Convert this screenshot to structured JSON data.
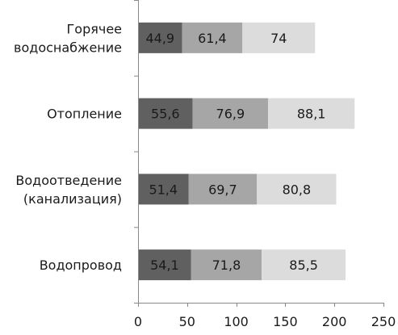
{
  "chart_data": {
    "type": "bar",
    "orientation": "horizontal",
    "stacked": true,
    "categories": [
      "Горячее водоснабжение",
      "Отопление",
      "Водоотведение (канализация)",
      "Водопровод"
    ],
    "category_label_lines": [
      [
        "Горячее",
        "водоснабжение"
      ],
      [
        "Отопление"
      ],
      [
        "Водоотведение",
        "(канализация)"
      ],
      [
        "Водопровод"
      ]
    ],
    "series": [
      {
        "values": [
          44.9,
          55.6,
          51.4,
          54.1
        ],
        "labels": [
          "44,9",
          "55,6",
          "51,4",
          "54,1"
        ],
        "color": "#606060"
      },
      {
        "values": [
          61.4,
          76.9,
          69.7,
          71.8
        ],
        "labels": [
          "61,4",
          "76,9",
          "69,7",
          "71,8"
        ],
        "color": "#a6a6a6"
      },
      {
        "values": [
          74,
          88.1,
          80.8,
          85.5
        ],
        "labels": [
          "74",
          "88,1",
          "80,8",
          "85,5"
        ],
        "color": "#dcdcdc"
      }
    ],
    "xlim": [
      0,
      250
    ],
    "x_ticks": [
      0,
      50,
      100,
      150,
      200,
      250
    ],
    "x_tick_labels": [
      "0",
      "50",
      "100",
      "150",
      "200",
      "250"
    ],
    "grid": false,
    "legend": "none",
    "title": "",
    "xlabel": "",
    "ylabel": ""
  }
}
